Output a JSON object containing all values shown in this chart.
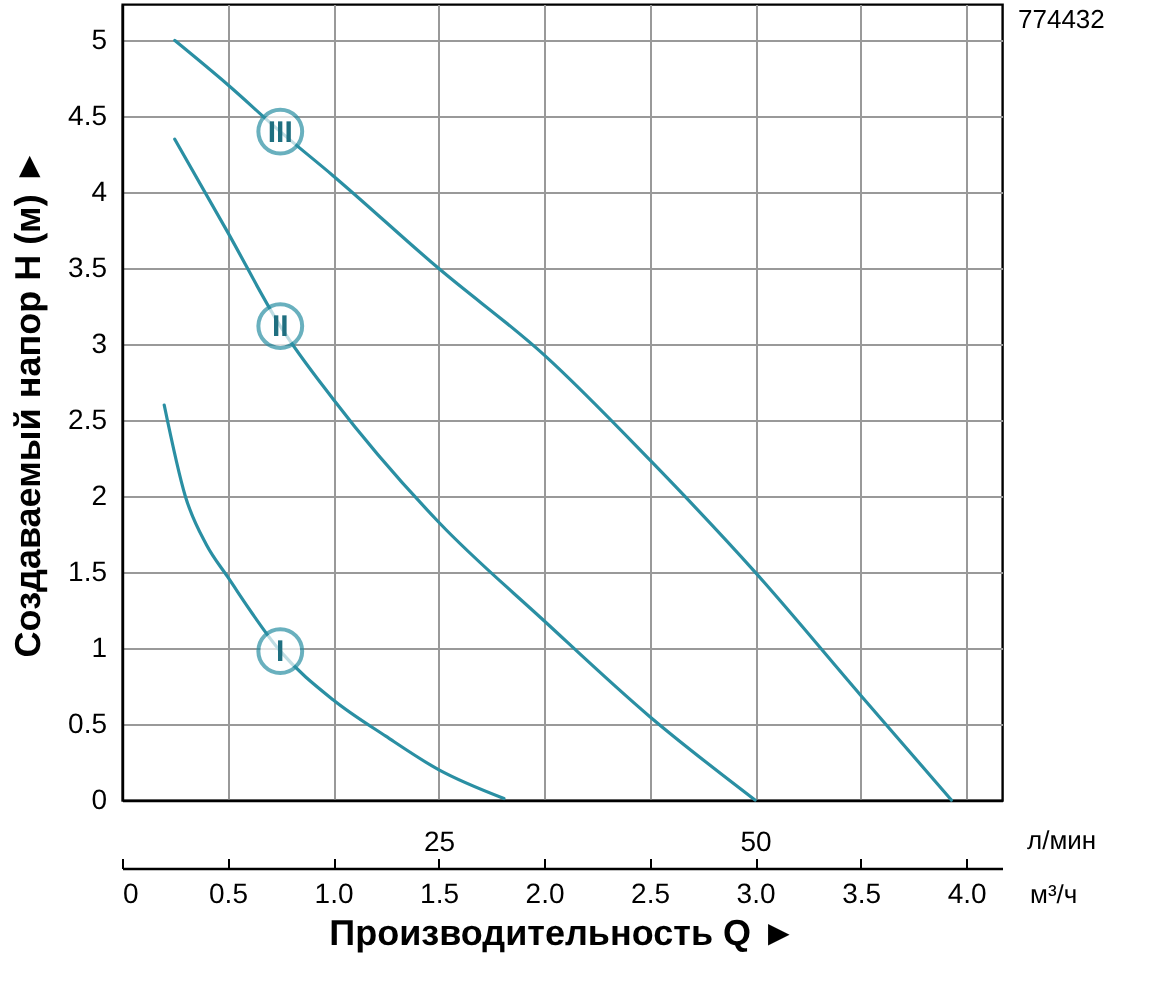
{
  "chart_data": {
    "type": "line",
    "xlabel": "Производительность Q ►",
    "ylabel": "Создаваемый напор Н (м) ►",
    "x2label": "л/мин",
    "annotations": [
      "774432",
      "м³/ч"
    ],
    "xlim": [
      0,
      4.17
    ],
    "ylim": [
      0,
      5.24
    ],
    "xticks": [
      0,
      0.5,
      {
        "value": 1,
        "label": "1.0"
      },
      1.5,
      {
        "value": 2,
        "label": "2.0"
      },
      2.5,
      {
        "value": 3,
        "label": "3.0"
      },
      3.5,
      {
        "value": 4,
        "label": "4.0"
      }
    ],
    "yticks": [
      0,
      0.5,
      1,
      1.5,
      2,
      2.5,
      3,
      3.5,
      4,
      4.5,
      5
    ],
    "x2lim": [
      0,
      69.5
    ],
    "x2ticks": [
      25,
      50
    ],
    "grid": true,
    "series": [
      {
        "name": "III",
        "color": "#2a8fa3",
        "x": [
          0.25,
          0.5,
          0.75,
          1.0,
          1.5,
          2.0,
          2.5,
          3.0,
          3.5,
          3.93
        ],
        "values": [
          5.0,
          4.71,
          4.4,
          4.11,
          3.5,
          2.93,
          2.24,
          1.5,
          0.69,
          0
        ]
      },
      {
        "name": "II",
        "color": "#2a8fa3",
        "x": [
          0.25,
          0.5,
          0.75,
          1.0,
          1.5,
          2.0,
          2.5,
          3.0
        ],
        "values": [
          4.35,
          3.74,
          3.12,
          2.64,
          1.83,
          1.18,
          0.55,
          0
        ]
      },
      {
        "name": "I",
        "color": "#2a8fa3",
        "x": [
          0.2,
          0.3,
          0.4,
          0.5,
          0.75,
          1.0,
          1.25,
          1.5,
          1.81
        ],
        "values": [
          2.6,
          2.0,
          1.68,
          1.47,
          0.98,
          0.66,
          0.42,
          0.2,
          0.01
        ]
      }
    ]
  }
}
